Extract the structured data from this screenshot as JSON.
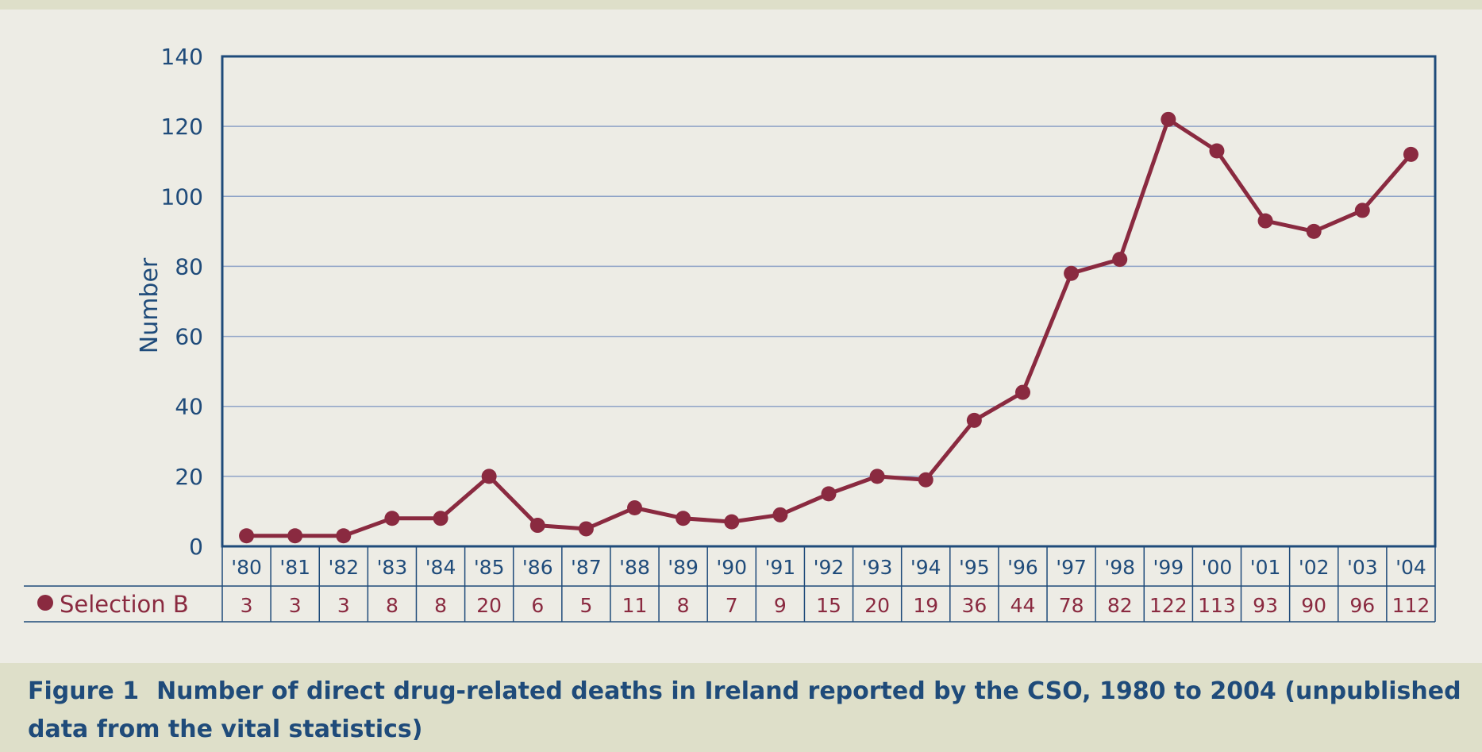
{
  "chart_data": {
    "type": "line",
    "title": "",
    "ylabel": "Number",
    "xlabel": "",
    "ylim": [
      0,
      140
    ],
    "yticks": [
      0,
      20,
      40,
      60,
      80,
      100,
      120,
      140
    ],
    "grid": true,
    "categories": [
      "'80",
      "'81",
      "'82",
      "'83",
      "'84",
      "'85",
      "'86",
      "'87",
      "'88",
      "'89",
      "'90",
      "'91",
      "'92",
      "'93",
      "'94",
      "'95",
      "'96",
      "'97",
      "'98",
      "'99",
      "'00",
      "'01",
      "'02",
      "'03",
      "'04"
    ],
    "series": [
      {
        "name": "Selection B",
        "color": "#8a2a40",
        "values": [
          3,
          3,
          3,
          8,
          8,
          20,
          6,
          5,
          11,
          8,
          7,
          9,
          15,
          20,
          19,
          36,
          44,
          78,
          82,
          122,
          113,
          93,
          90,
          96,
          112
        ]
      }
    ]
  },
  "caption": {
    "label": "Figure 1",
    "text": "Number of direct drug-related deaths in Ireland reported by the CSO, 1980 to 2004 (unpublished data from the vital statistics)"
  },
  "colors": {
    "axis": "#1f4b7a",
    "grid": "#8fa3c7",
    "series": "#8a2a40",
    "band": "#dedfc9",
    "background": "#edece5"
  }
}
